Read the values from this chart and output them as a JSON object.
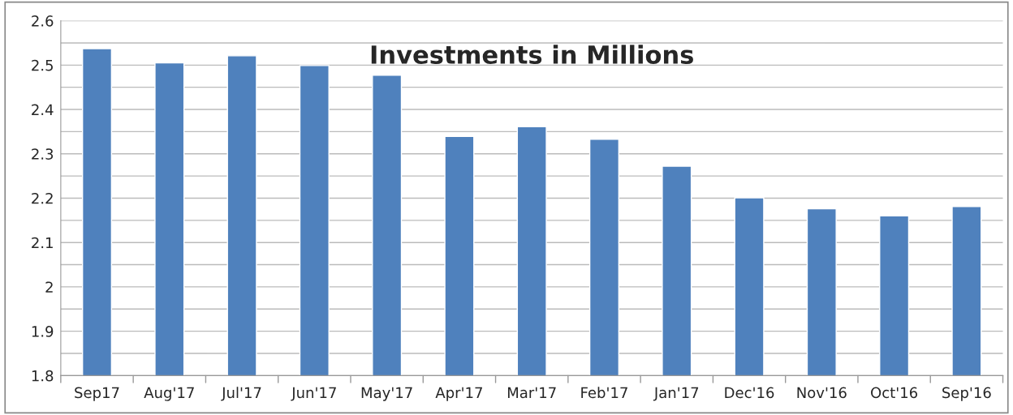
{
  "chart_data": {
    "type": "bar",
    "title": "Investments in Millions",
    "categories": [
      "Sep17",
      "Aug'17",
      "Jul'17",
      "Jun'17",
      "May'17",
      "Apr'17",
      "Mar'17",
      "Feb'17",
      "Jan'17",
      "Dec'16",
      "Nov'16",
      "Oct'16",
      "Sep'16"
    ],
    "values": [
      2.537,
      2.505,
      2.521,
      2.499,
      2.477,
      2.339,
      2.361,
      2.333,
      2.272,
      2.201,
      2.176,
      2.16,
      2.181
    ],
    "color": "#4f81bd",
    "ylim": [
      1.8,
      2.6
    ],
    "yticks": [
      1.8,
      {
        "value": 1.85,
        "label": null
      },
      1.9,
      {
        "value": 1.95,
        "label": null
      },
      2,
      {
        "value": 2.05,
        "label": null
      },
      2.1,
      {
        "value": 2.15,
        "label": null
      },
      2.2,
      {
        "value": 2.25,
        "label": null
      },
      2.3,
      {
        "value": 2.35,
        "label": null
      },
      2.4,
      {
        "value": 2.45,
        "label": null
      },
      2.5,
      {
        "value": 2.55,
        "label": null
      },
      2.6
    ],
    "grid": "y"
  }
}
